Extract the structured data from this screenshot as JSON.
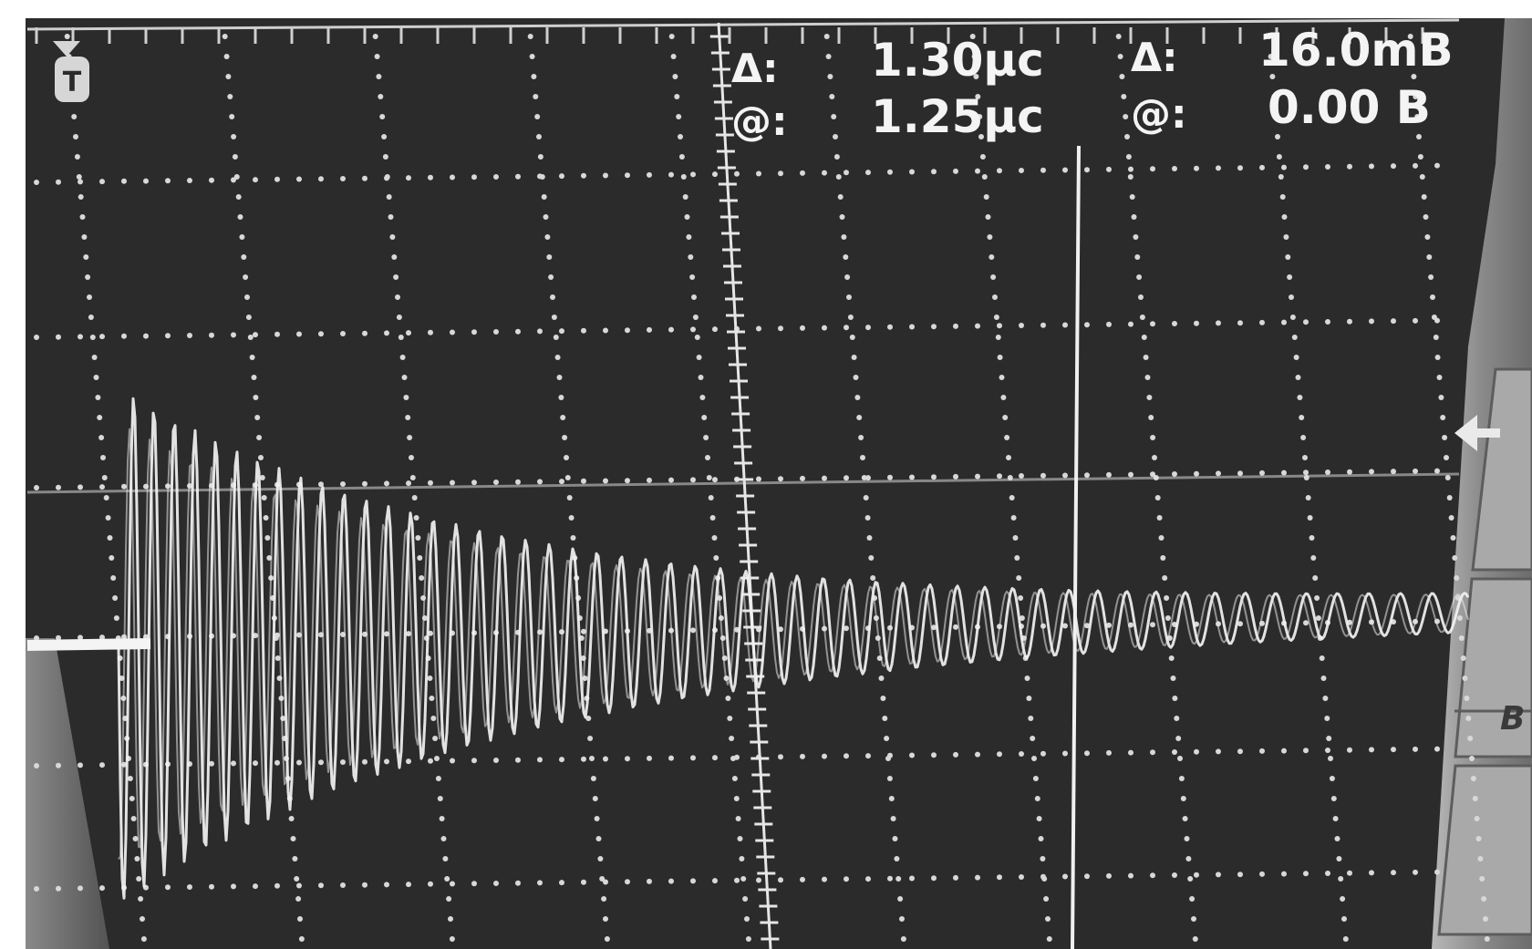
{
  "scope": {
    "trigger_marker": "T",
    "readouts": {
      "time_delta_label": "Δ:",
      "time_delta": "1.30μc",
      "time_at_label": "@:",
      "time_at": "1.25μc",
      "volt_delta_label": "Δ:",
      "volt_delta": "16.0mB",
      "volt_at_label": "@:",
      "volt_at": "0.00 B"
    },
    "side_menu": {
      "label_b": "B"
    },
    "colors": {
      "screen": "#2b2b2b",
      "trace": "#f2f2f2",
      "grid": "#d8d8d8",
      "bezel": "#8e8e8e",
      "paper": "#ffffff"
    }
  }
}
